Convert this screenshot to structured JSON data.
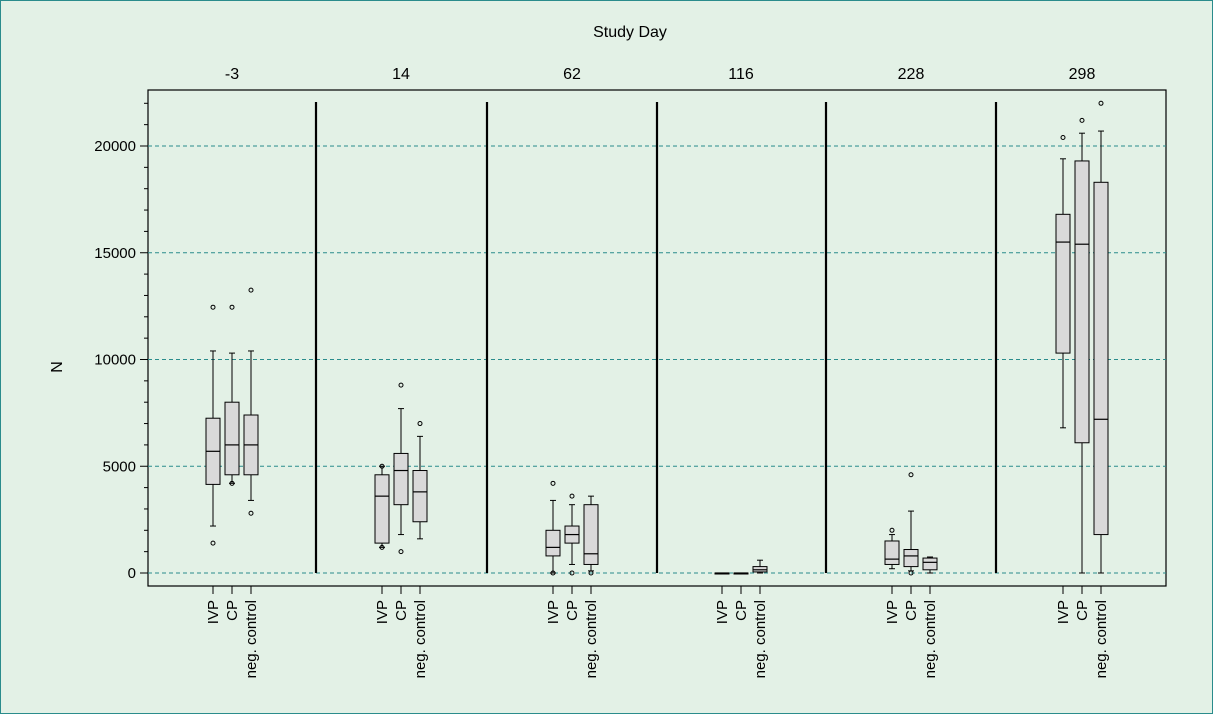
{
  "chart_data": {
    "type": "box",
    "title": "Study Day",
    "ylabel": "N",
    "ylim": [
      -1000,
      22300
    ],
    "yticks": [
      0,
      5000,
      10000,
      15000,
      20000
    ],
    "ytick_labels": [
      "0",
      "5000",
      "10000",
      "15000",
      "20000"
    ],
    "grid": "horizontal dashed at major y ticks",
    "categories": [
      "IVP",
      "CP",
      "neg. control"
    ],
    "panels": [
      {
        "day": "-3",
        "boxes": [
          {
            "group": "IVP",
            "min": 2200,
            "q1": 4150,
            "median": 5700,
            "q3": 7250,
            "max": 10400,
            "outliers": [
              1400,
              12450
            ]
          },
          {
            "group": "CP",
            "min": 4200,
            "q1": 4600,
            "median": 6000,
            "q3": 8000,
            "max": 10300,
            "outliers": [
              4200,
              12450
            ]
          },
          {
            "group": "neg. control",
            "min": 3400,
            "q1": 4600,
            "median": 6000,
            "q3": 7400,
            "max": 10400,
            "outliers": [
              2800,
              13250
            ]
          }
        ]
      },
      {
        "day": "14",
        "boxes": [
          {
            "group": "IVP",
            "min": 1200,
            "q1": 1400,
            "median": 3600,
            "q3": 4600,
            "max": 5000,
            "outliers": [
              1200,
              5000
            ]
          },
          {
            "group": "CP",
            "min": 1800,
            "q1": 3200,
            "median": 4800,
            "q3": 5600,
            "max": 7700,
            "outliers": [
              1000,
              8800
            ]
          },
          {
            "group": "neg. control",
            "min": 1600,
            "q1": 2400,
            "median": 3800,
            "q3": 4800,
            "max": 6400,
            "outliers": [
              7000
            ]
          }
        ]
      },
      {
        "day": "62",
        "boxes": [
          {
            "group": "IVP",
            "min": 0,
            "q1": 800,
            "median": 1200,
            "q3": 2000,
            "max": 3400,
            "outliers": [
              0,
              4200
            ]
          },
          {
            "group": "CP",
            "min": 400,
            "q1": 1400,
            "median": 1800,
            "q3": 2200,
            "max": 3200,
            "outliers": [
              0,
              3600
            ]
          },
          {
            "group": "neg. control",
            "min": 100,
            "q1": 400,
            "median": 900,
            "q3": 3200,
            "max": 3600,
            "outliers": [
              0
            ]
          }
        ]
      },
      {
        "day": "116",
        "boxes": [
          {
            "group": "IVP",
            "min": 0,
            "q1": 0,
            "median": 0,
            "q3": 0,
            "max": 0,
            "outliers": []
          },
          {
            "group": "CP",
            "min": 0,
            "q1": 0,
            "median": 0,
            "q3": 0,
            "max": 0,
            "outliers": []
          },
          {
            "group": "neg. control",
            "min": 0,
            "q1": 50,
            "median": 150,
            "q3": 300,
            "max": 600,
            "outliers": []
          }
        ]
      },
      {
        "day": "228",
        "boxes": [
          {
            "group": "IVP",
            "min": 200,
            "q1": 400,
            "median": 650,
            "q3": 1500,
            "max": 1800,
            "outliers": [
              2000
            ]
          },
          {
            "group": "CP",
            "min": 100,
            "q1": 300,
            "median": 800,
            "q3": 1100,
            "max": 2900,
            "outliers": [
              0,
              4600
            ]
          },
          {
            "group": "neg. control",
            "min": 0,
            "q1": 150,
            "median": 500,
            "q3": 700,
            "max": 750,
            "outliers": []
          }
        ]
      },
      {
        "day": "298",
        "boxes": [
          {
            "group": "IVP",
            "min": 6800,
            "q1": 10300,
            "median": 15500,
            "q3": 16800,
            "max": 19400,
            "outliers": [
              20400
            ]
          },
          {
            "group": "CP",
            "min": 0,
            "q1": 6100,
            "median": 15400,
            "q3": 19300,
            "max": 20600,
            "outliers": [
              21200
            ]
          },
          {
            "group": "neg. control",
            "min": 0,
            "q1": 1800,
            "median": 7200,
            "q3": 18300,
            "max": 20700,
            "outliers": [
              22000
            ]
          }
        ]
      }
    ],
    "colors": {
      "background": "#e3f1e6",
      "plot_area": "#e3f1e6",
      "box_fill": "#d9d9d9",
      "grid": "#2a8c8c",
      "border": "#2a8c8c",
      "ink": "#000000"
    }
  }
}
